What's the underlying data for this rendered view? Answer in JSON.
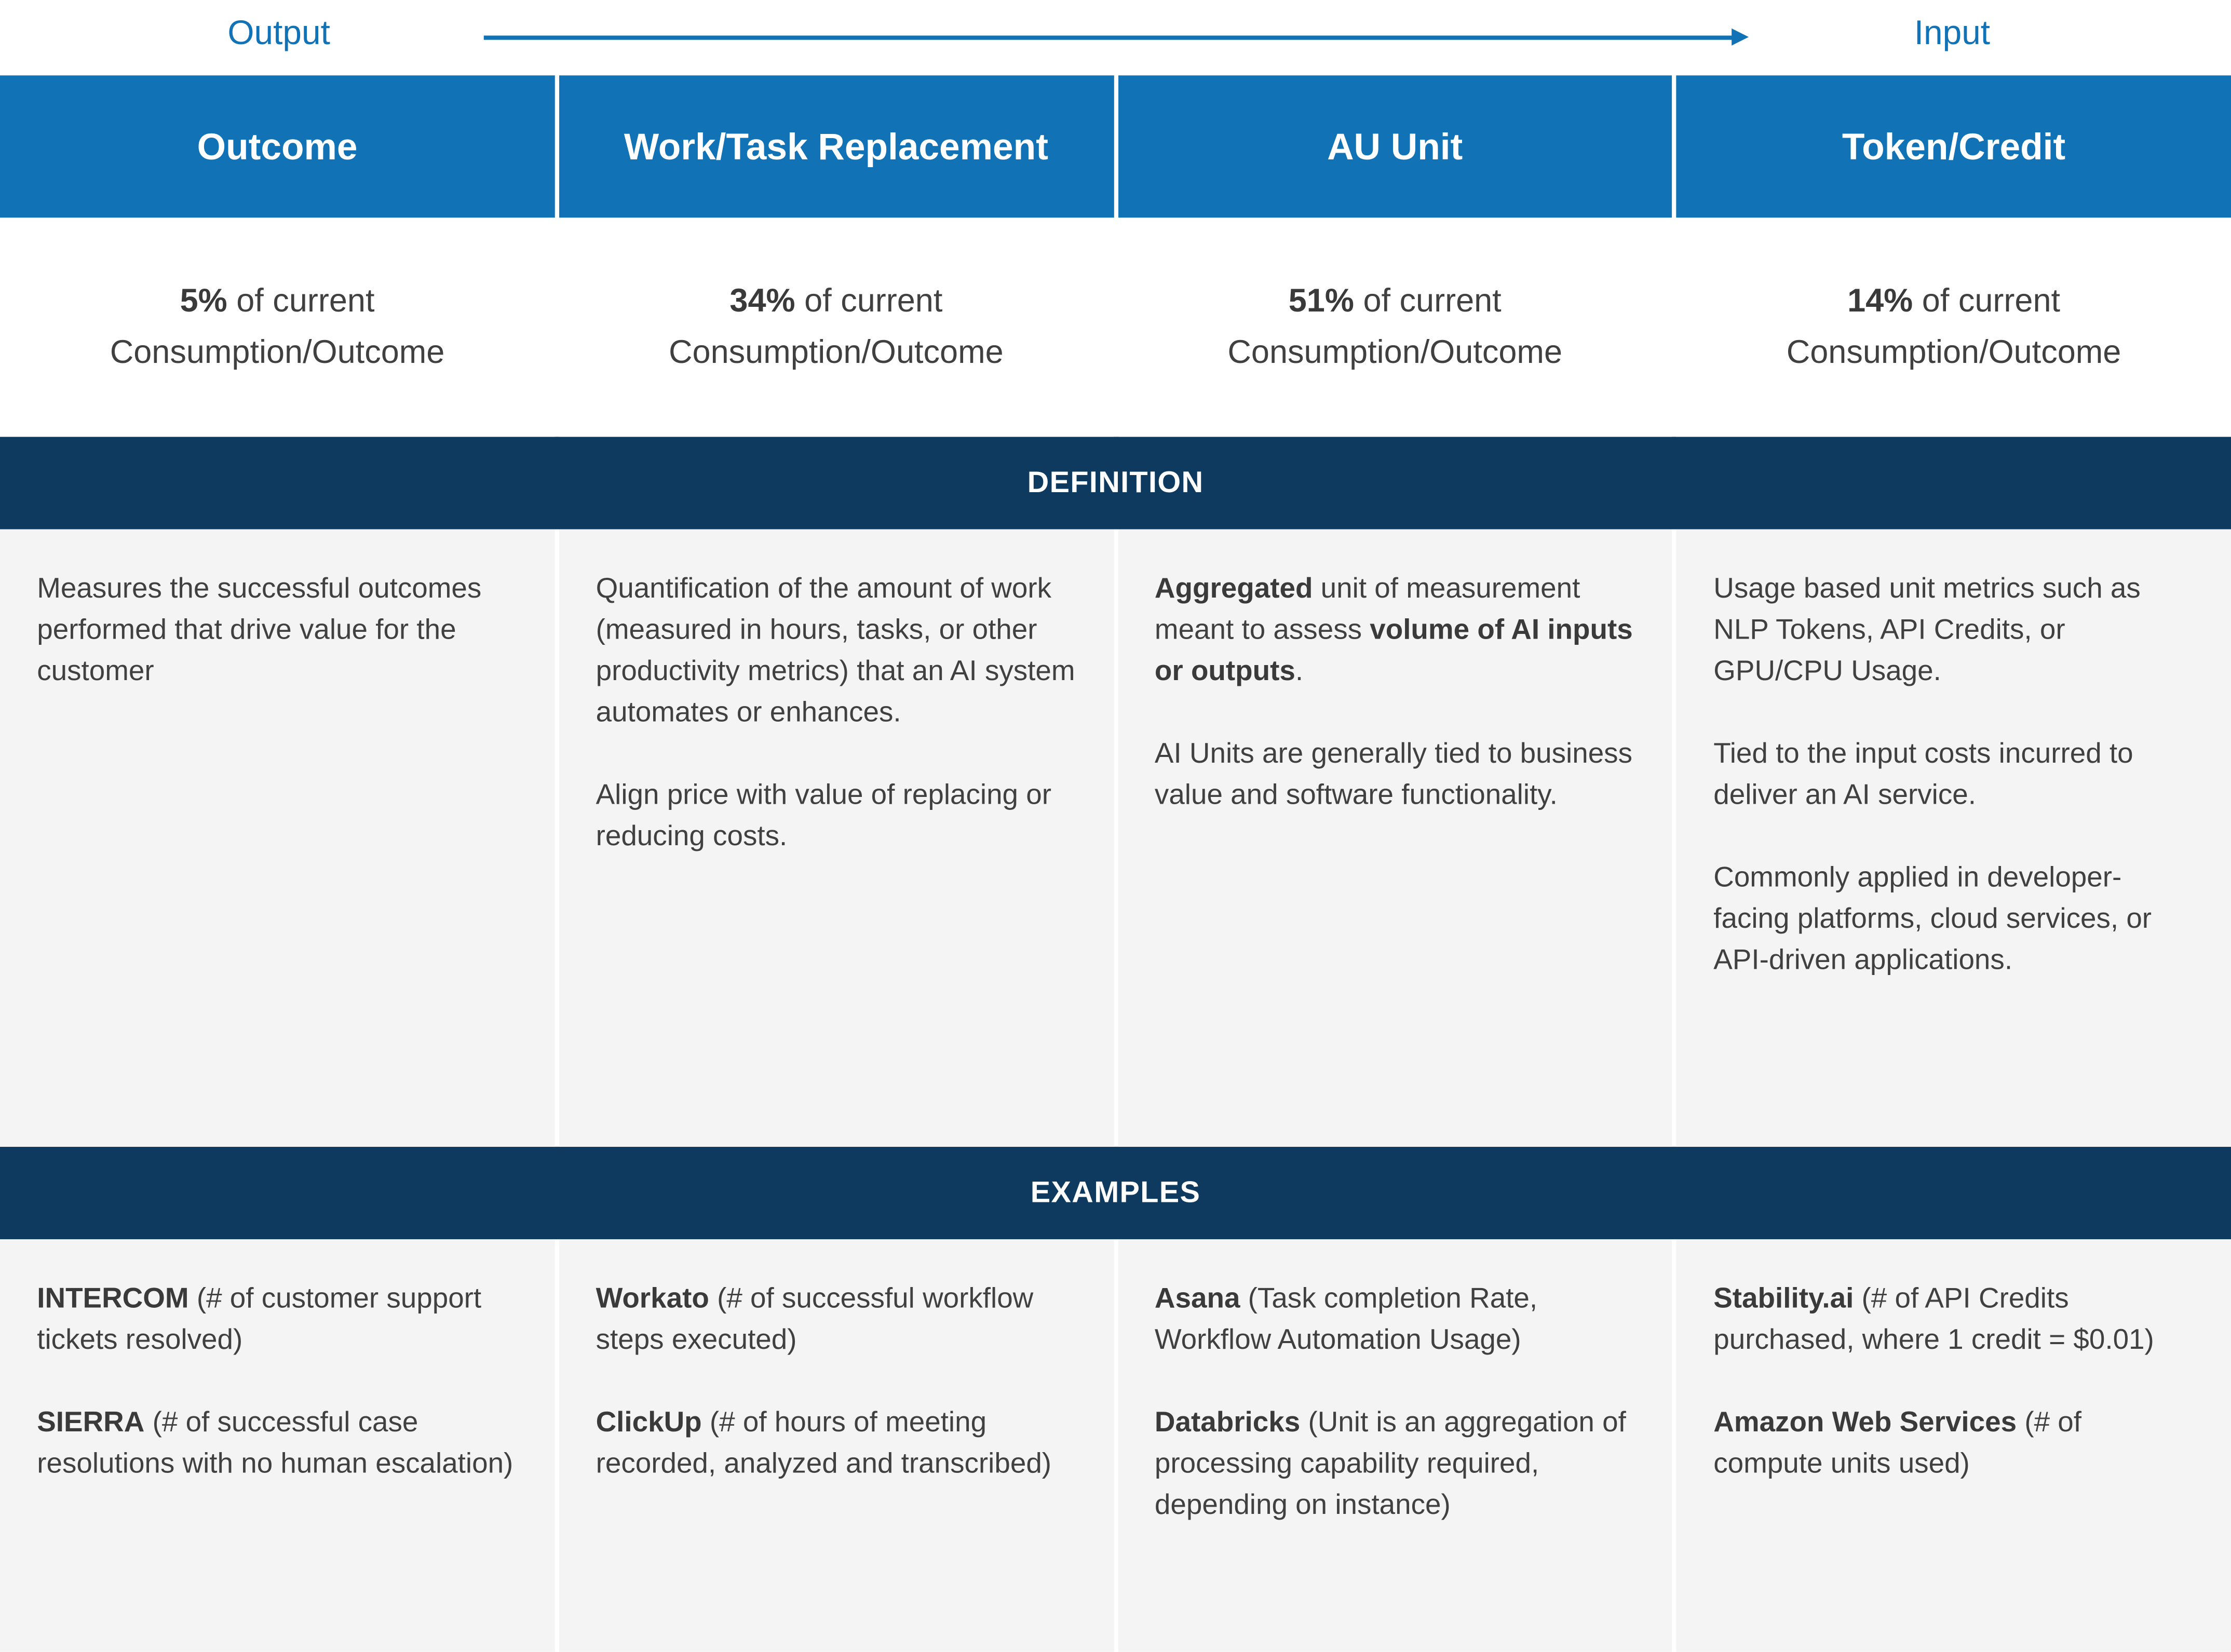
{
  "page": {
    "output_label": "Output",
    "input_label": "Input",
    "definition_label": "DEFINITION",
    "examples_label": "EXAMPLES"
  },
  "colors": {
    "header_blue": "#1272B6",
    "section_navy": "#0D3A5E",
    "panel_gray": "#F4F4F4",
    "body_text": "#404040",
    "accent_blue": "#1272B6"
  },
  "columns": [
    {
      "title": "Outcome",
      "stat": {
        "value": "5%",
        "suffix": " of current",
        "line2": "Consumption/Outcome"
      },
      "definition": [
        [
          {
            "t": "Measures the successful outcomes performed that drive value for the customer"
          }
        ]
      ],
      "examples": [
        [
          {
            "t": "INTERCOM",
            "b": true
          },
          {
            "t": " (# of customer support tickets resolved)"
          }
        ],
        [
          {
            "t": "SIERRA",
            "b": true
          },
          {
            "t": " (# of successful case resolutions with no human escalation)"
          }
        ]
      ]
    },
    {
      "title": "Work/Task Replacement",
      "stat": {
        "value": "34%",
        "suffix": " of current",
        "line2": "Consumption/Outcome"
      },
      "definition": [
        [
          {
            "t": "Quantification of the amount of work (measured in hours, tasks, or other productivity metrics) that an AI system automates or enhances."
          }
        ],
        [
          {
            "t": "Align price with value of replacing or reducing costs."
          }
        ]
      ],
      "examples": [
        [
          {
            "t": "Workato",
            "b": true
          },
          {
            "t": " (# of successful workflow steps executed)"
          }
        ],
        [
          {
            "t": "ClickUp",
            "b": true
          },
          {
            "t": " (# of hours of meeting recorded, analyzed and transcribed)"
          }
        ]
      ]
    },
    {
      "title": "AU Unit",
      "stat": {
        "value": "51%",
        "suffix": " of current",
        "line2": "Consumption/Outcome"
      },
      "definition": [
        [
          {
            "t": "Aggregated",
            "b": true
          },
          {
            "t": " unit of measurement meant to assess "
          },
          {
            "t": "volume of AI inputs or outputs",
            "b": true
          },
          {
            "t": "."
          }
        ],
        [
          {
            "t": "AI Units are generally tied to business value and software functionality."
          }
        ]
      ],
      "examples": [
        [
          {
            "t": "Asana",
            "b": true
          },
          {
            "t": " (Task completion Rate, Workflow Automation Usage)"
          }
        ],
        [
          {
            "t": "Databricks",
            "b": true
          },
          {
            "t": " (Unit is an aggregation of processing capability required, depending on instance)"
          }
        ]
      ]
    },
    {
      "title": "Token/Credit",
      "stat": {
        "value": "14%",
        "suffix": " of current",
        "line2": "Consumption/Outcome"
      },
      "definition": [
        [
          {
            "t": "Usage based unit metrics such as NLP Tokens, API Credits, or GPU/CPU Usage."
          }
        ],
        [
          {
            "t": "Tied to the input costs incurred to deliver an AI service."
          }
        ],
        [
          {
            "t": "Commonly applied in developer-facing platforms, cloud services, or API-driven applications."
          }
        ]
      ],
      "examples": [
        [
          {
            "t": "Stability.ai",
            "b": true
          },
          {
            "t": " (# of API Credits purchased, where 1 credit = $0.01)"
          }
        ],
        [
          {
            "t": "Amazon Web Services",
            "b": true
          },
          {
            "t": " (# of compute units used)"
          }
        ]
      ]
    }
  ]
}
